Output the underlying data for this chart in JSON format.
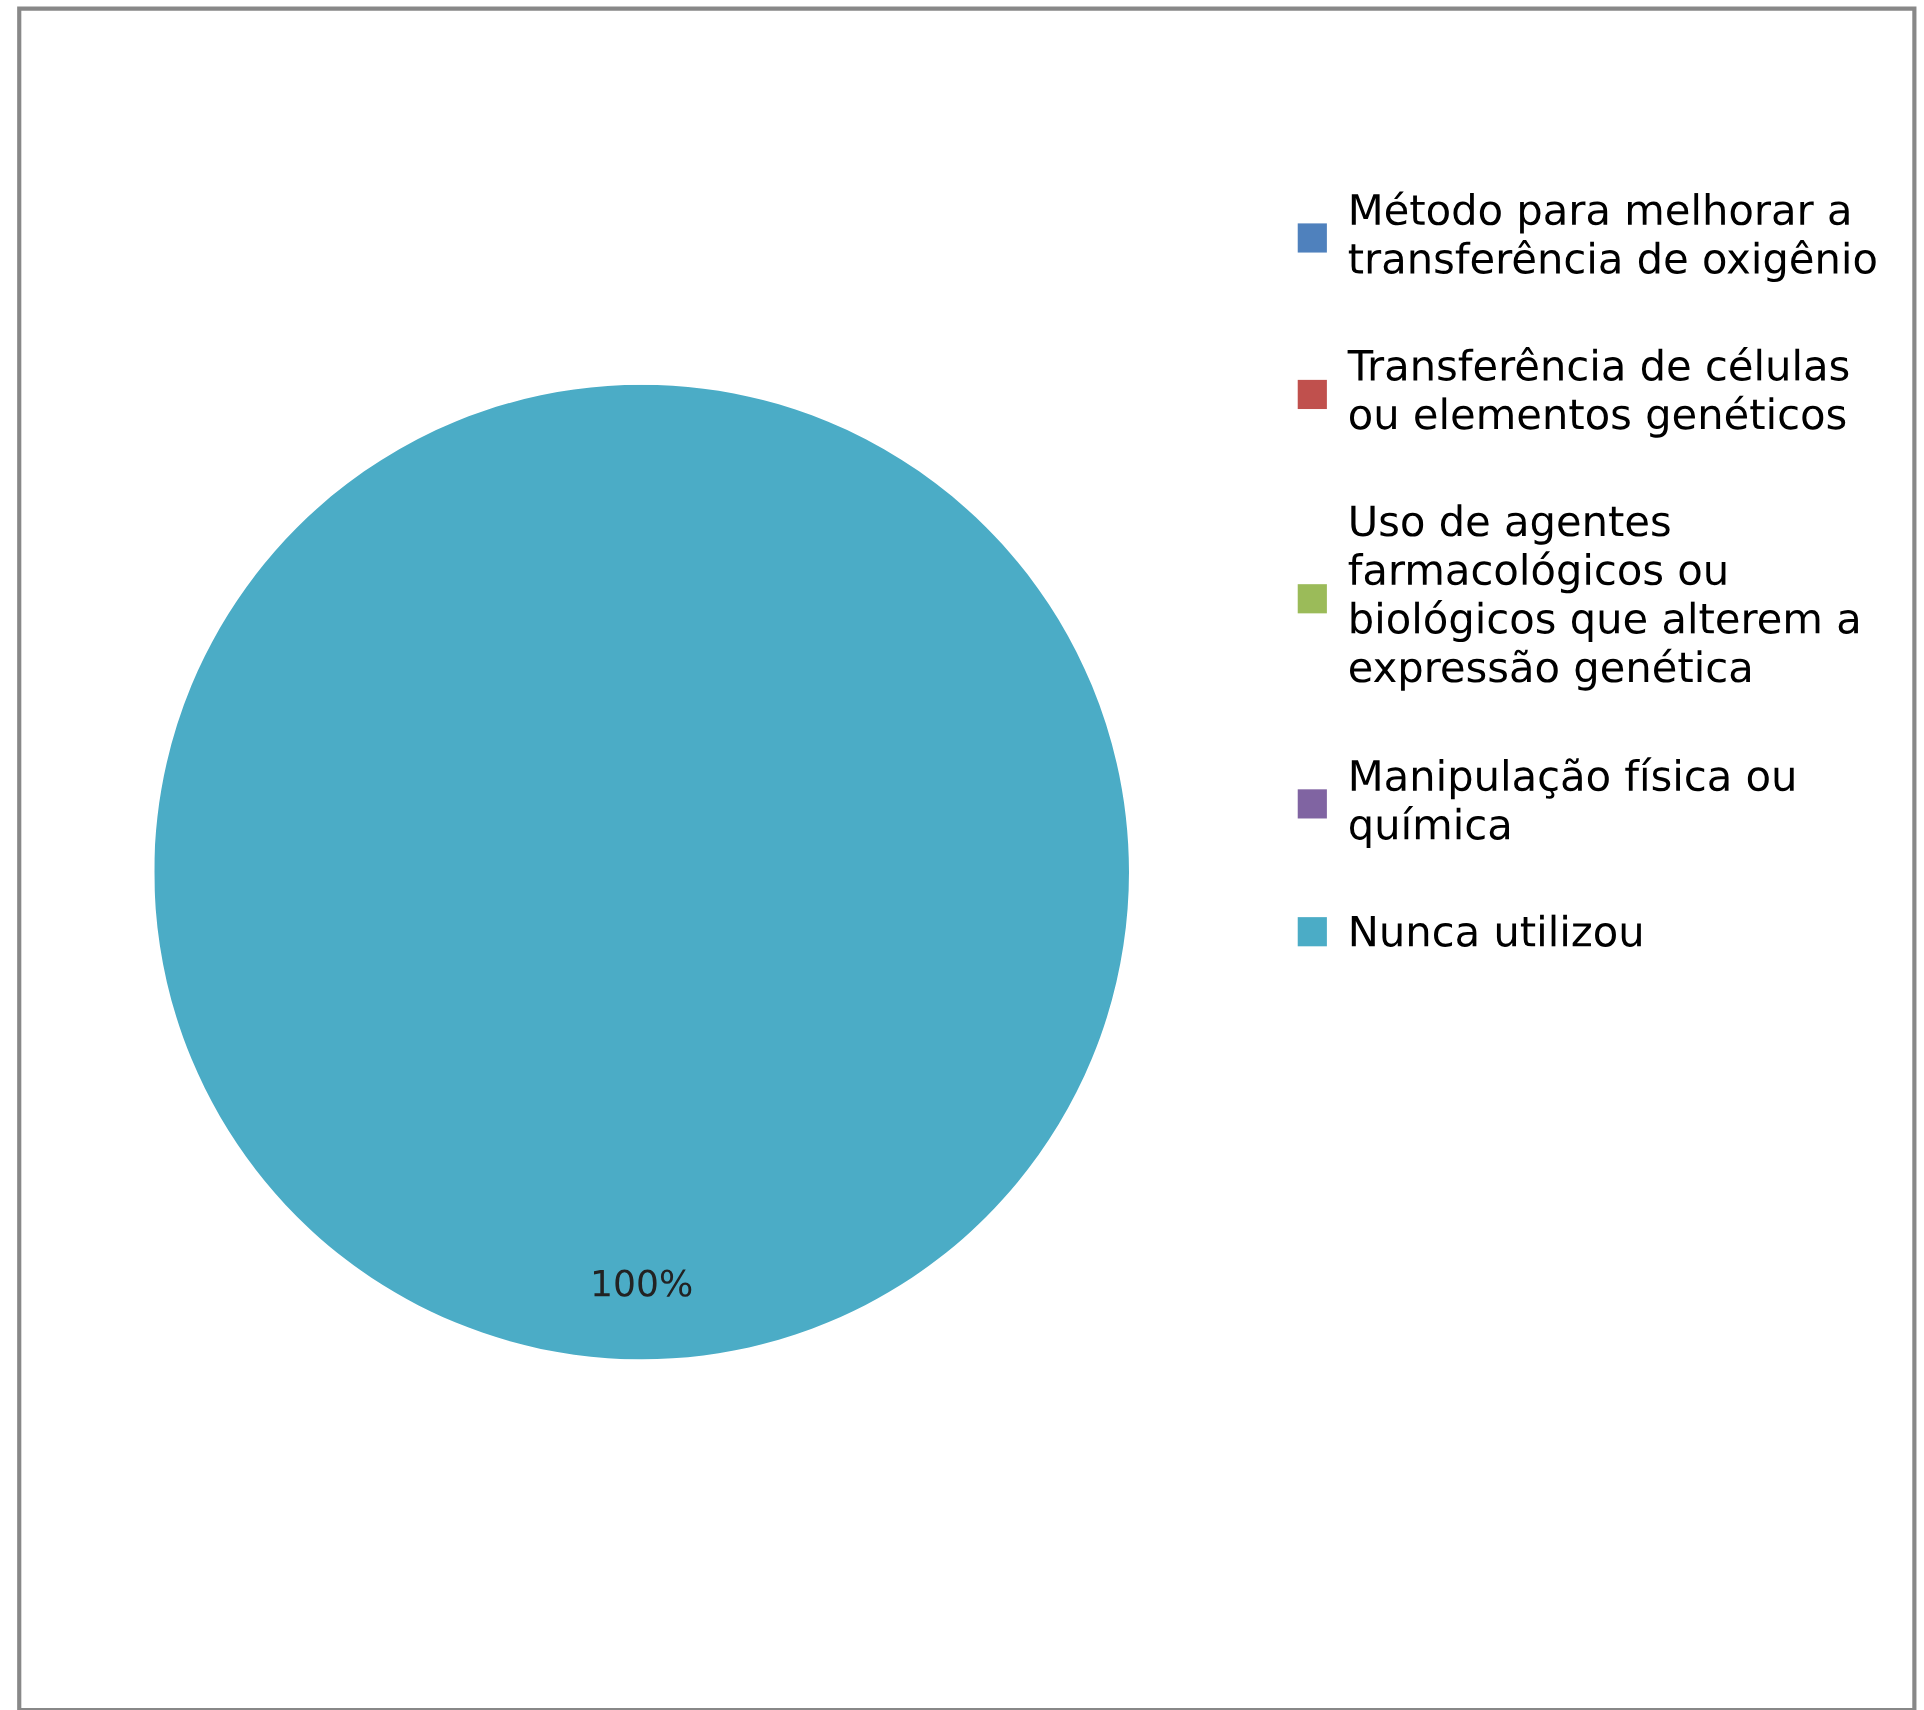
{
  "chart_data": {
    "type": "pie",
    "categories": [
      "Método para melhorar a\ntransferência de oxigênio",
      "Transferência de células\nou elementos genéticos",
      "Uso de agentes\nfarmacológicos ou\nbiológicos que alterem a\nexpressão genética",
      "Manipulação física ou\nquímica",
      "Nunca utilizou"
    ],
    "values": [
      0,
      0,
      0,
      0,
      100
    ],
    "colors": [
      "#4f81bd",
      "#c0504d",
      "#9bbb59",
      "#8064a2",
      "#4bacc6"
    ],
    "value_labels": [
      null,
      null,
      null,
      null,
      "100%"
    ],
    "legend": "right"
  }
}
